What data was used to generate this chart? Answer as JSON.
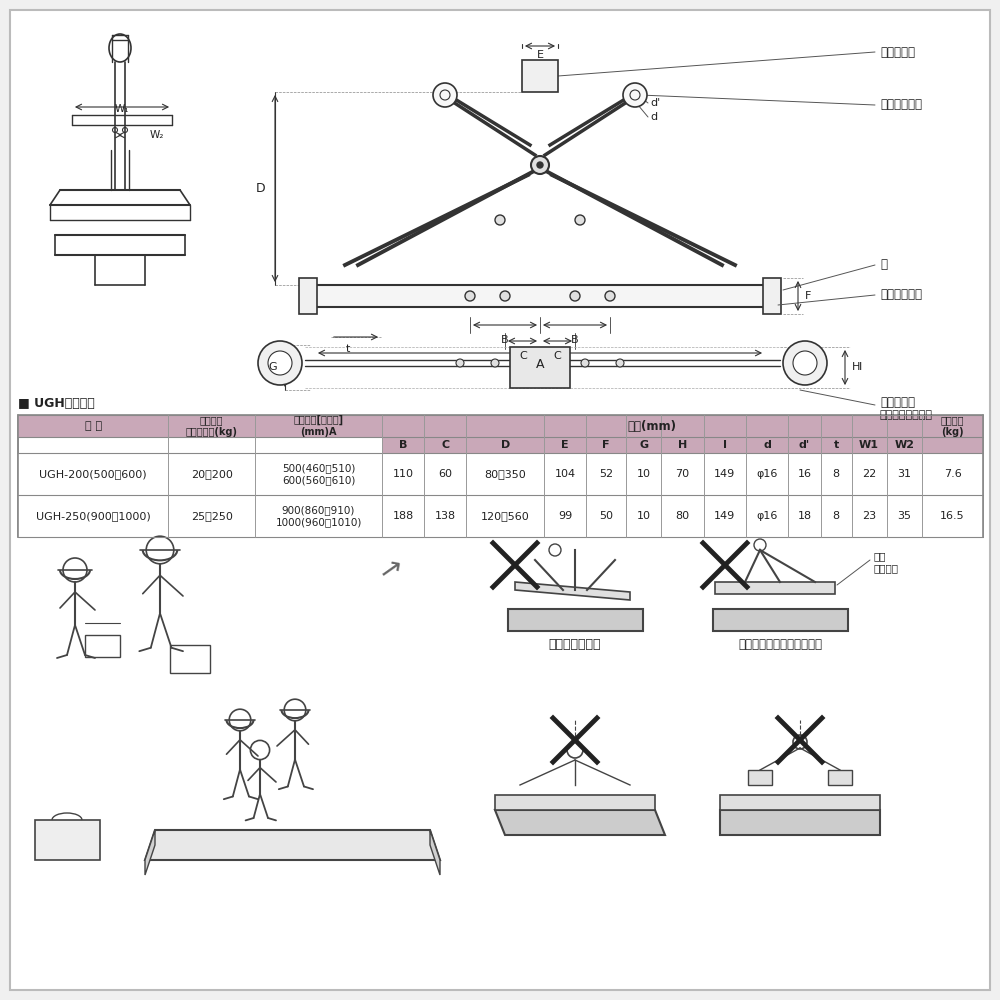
{
  "bg_color": "#f0f0f0",
  "white_bg": "#ffffff",
  "table_header_bg": "#c9a8b8",
  "table_border": "#999999",
  "dark": "#333333",
  "table_title": "■ UGH型寸法表",
  "col1_label": "型 式",
  "col2_label": "使用荷重\n最小～最大(kg)",
  "col3_label": "有効板厚[つり幅]\n(mm)A",
  "dim_label": "寸法(mm)",
  "weight_label": "製品質量\n(kg)",
  "sub_cols": [
    "B",
    "C",
    "D",
    "E",
    "F",
    "G",
    "H",
    "I",
    "d",
    "d'",
    "t",
    "W1",
    "W2"
  ],
  "rows": [
    {
      "model": "UGH-200(500・600)",
      "load": "20～200",
      "effective": "500(460～510)\n600(560～610)",
      "B": "110",
      "C": "60",
      "D": "80～350",
      "E": "104",
      "F": "52",
      "G": "10",
      "H": "70",
      "I": "149",
      "d": "φ16",
      "d2": "16",
      "t": "8",
      "W1": "22",
      "W2": "31",
      "weight": "7.6"
    },
    {
      "model": "UGH-250(900・1000)",
      "load": "25～250",
      "effective": "900(860～910)\n1000(960～1010)",
      "B": "188",
      "C": "138",
      "D": "120～560",
      "E": "99",
      "F": "50",
      "G": "10",
      "H": "80",
      "I": "149",
      "d": "φ16",
      "d2": "18",
      "t": "8",
      "W1": "23",
      "W2": "35",
      "weight": "16.5"
    }
  ],
  "ann_chuo": "中央取っ手",
  "ann_arm1": "アーム取っ手",
  "ann_tsume": "爪",
  "ann_arm2": "アーム取っ手",
  "ann_pin": "アームピン",
  "ann_pin2": "（開口調整ピン）",
  "warn1": "片荷にならない",
  "warn2": "先端で吹荷をつかまない。",
  "warn_gap": "隙間\nあき過ぎ"
}
